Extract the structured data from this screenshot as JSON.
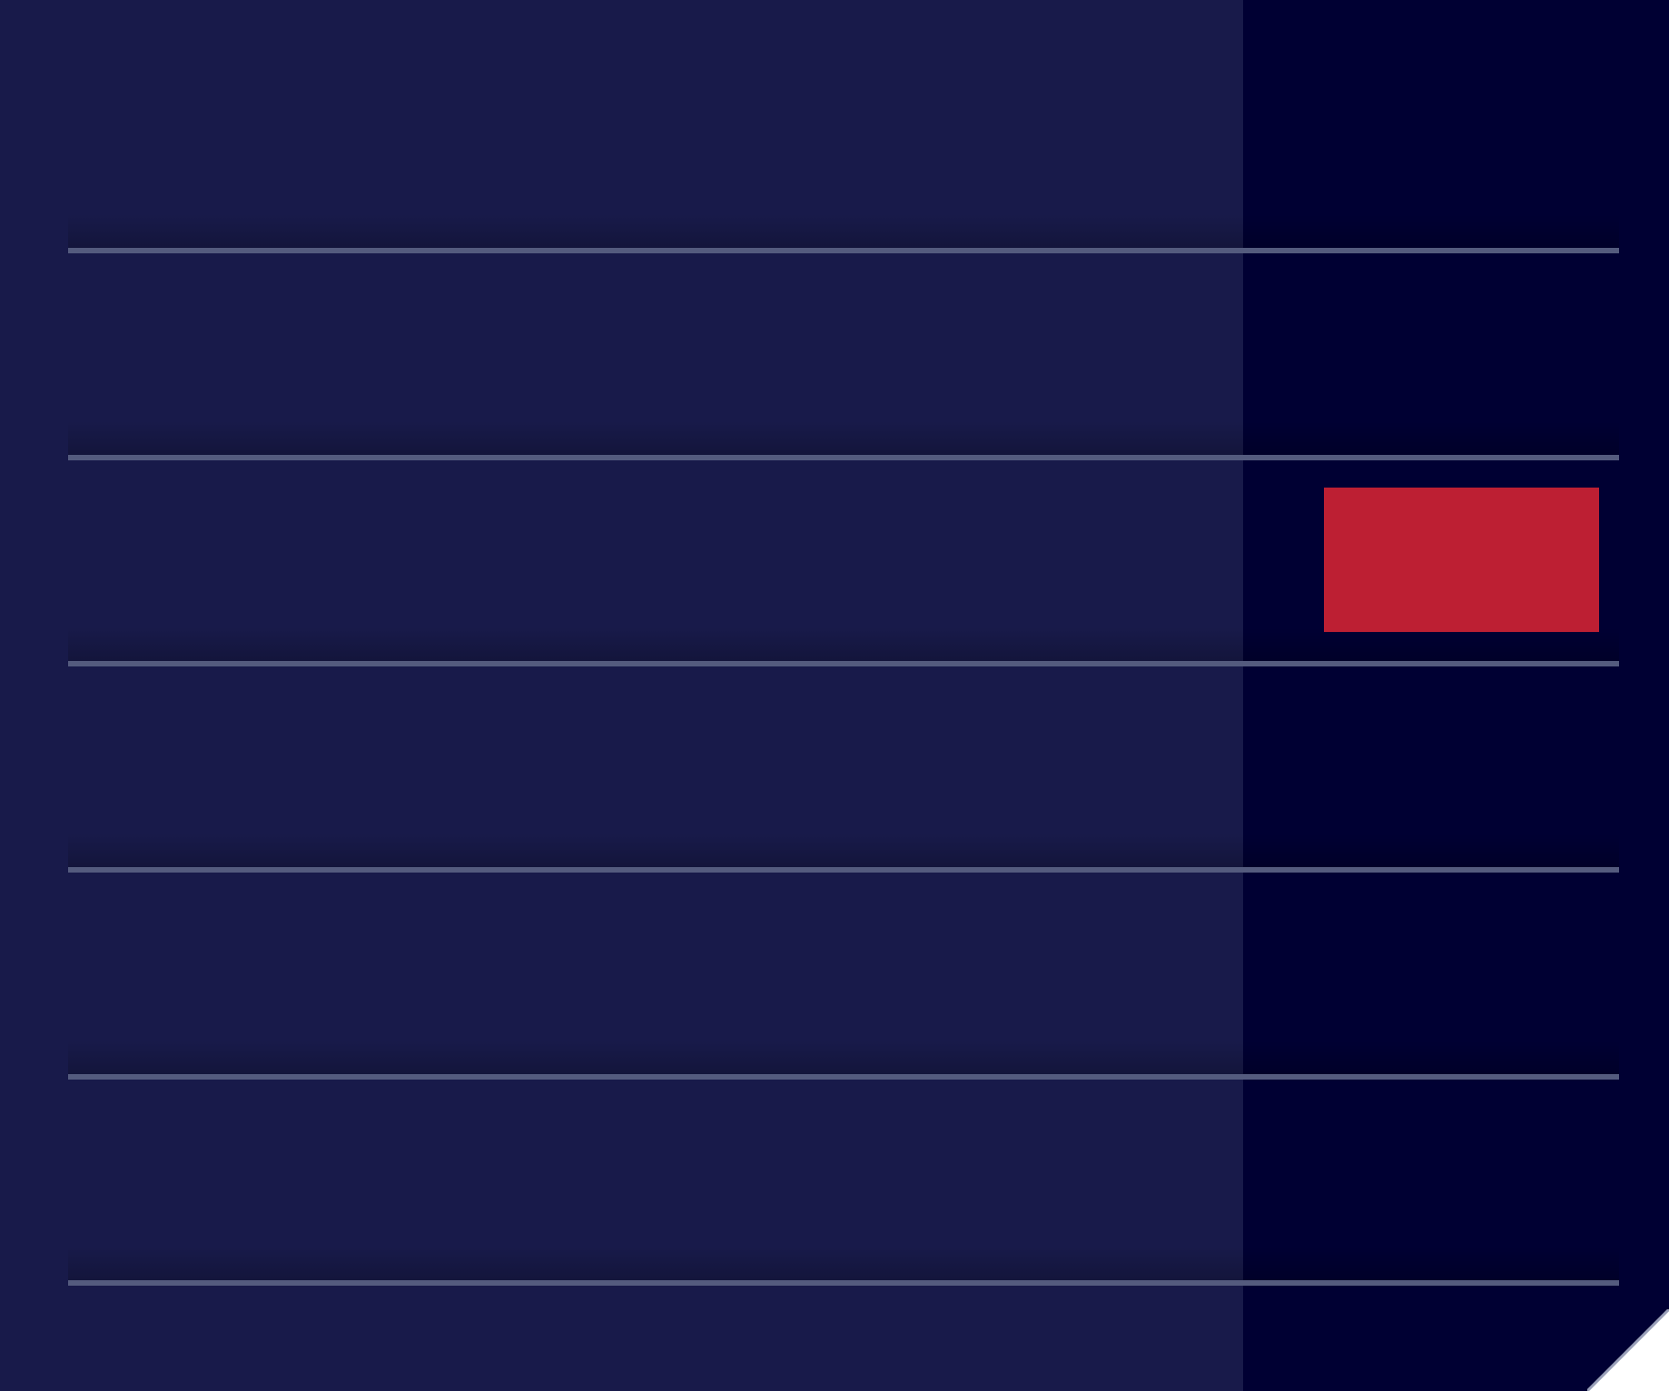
{
  "colors": {
    "main_background": "#181a4a",
    "side_background": "#000033",
    "divider": "#545b7e",
    "highlight": "#bd1f33",
    "corner_fold_edge": "#9aa0b8"
  },
  "rows": [
    {
      "filled": false
    },
    {
      "filled": true
    },
    {
      "filled": false
    },
    {
      "filled": false
    },
    {
      "filled": false
    }
  ],
  "corner": {
    "icon": "page-curl-icon"
  }
}
